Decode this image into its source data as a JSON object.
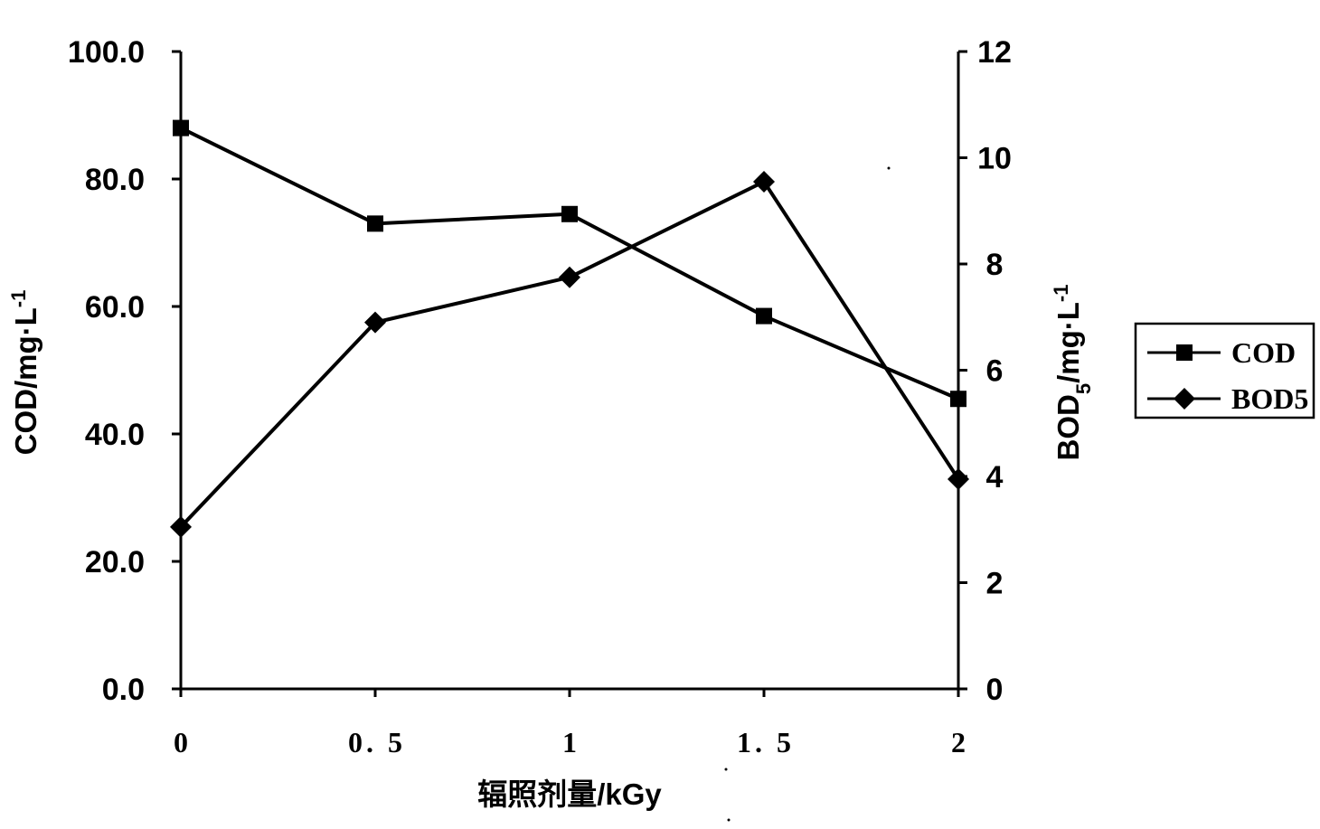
{
  "chart_data": {
    "type": "line",
    "x": [
      0,
      0.5,
      1,
      1.5,
      2
    ],
    "x_tick_labels": [
      "0",
      "0. 5",
      "1",
      "1. 5",
      "2"
    ],
    "xlabel": "辐照剂量/kGy",
    "ylabel_left": "COD/mg·L",
    "ylabel_left_sup": "-1",
    "ylabel_right": "BOD",
    "ylabel_right_sub": "5",
    "ylabel_right_tail": "/mg·L",
    "ylabel_right_sup": "-1",
    "ylim_left": [
      0,
      100
    ],
    "ylim_right": [
      0,
      12
    ],
    "y_left_ticks": [
      "0.0",
      "20.0",
      "40.0",
      "60.0",
      "80.0",
      "100.0"
    ],
    "y_right_ticks": [
      "0",
      "2",
      "4",
      "6",
      "8",
      "10",
      "12"
    ],
    "grid": false,
    "legend_position": "right",
    "series": [
      {
        "name": "COD",
        "axis": "left",
        "marker": "square",
        "values": [
          88.0,
          73.0,
          74.5,
          58.5,
          45.5
        ]
      },
      {
        "name": "BOD5",
        "axis": "right",
        "marker": "diamond",
        "values": [
          3.05,
          6.9,
          7.75,
          9.55,
          3.95
        ]
      }
    ],
    "colors": {
      "line": "#000000",
      "background": "#ffffff"
    }
  }
}
